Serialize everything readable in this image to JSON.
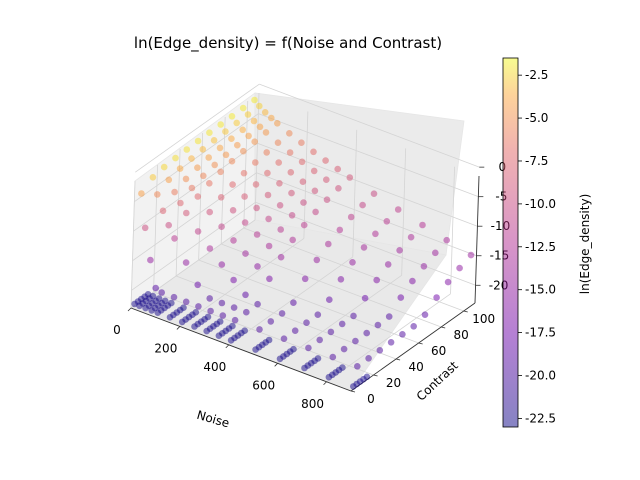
{
  "chart_data": {
    "type": "scatter3d",
    "title": "ln(Edge_density) = f(Noise and Contrast)",
    "xlabel": "Noise",
    "ylabel": "Contrast",
    "zlabel": "",
    "colorbar_label": "ln(Edge_density)",
    "xlim": [
      0,
      900
    ],
    "ylim": [
      0,
      110
    ],
    "zlim": [
      -23,
      -1.5
    ],
    "x_ticks": [
      0,
      200,
      400,
      600,
      800
    ],
    "y_ticks": [
      0,
      20,
      40,
      60,
      80,
      100
    ],
    "z_ticks": [
      0,
      -5,
      -10,
      -15,
      -20
    ],
    "colorbar_ticks": [
      -2.5,
      -5.0,
      -7.5,
      -10.0,
      -12.5,
      -15.0,
      -17.5,
      -20.0,
      -22.5
    ],
    "colormap": "plasma",
    "alpha": 0.5,
    "grid": true,
    "noise_levels": [
      5,
      25,
      50,
      75,
      100,
      150,
      200,
      250,
      300,
      350,
      400,
      500,
      600,
      700,
      800,
      900
    ],
    "contrast_levels": [
      5,
      15,
      25,
      35,
      45,
      55,
      65,
      75,
      85,
      95,
      105
    ],
    "floor_cluster": {
      "z": -22.5,
      "contrast_levels": [
        2,
        5,
        8,
        11,
        14
      ]
    }
  }
}
